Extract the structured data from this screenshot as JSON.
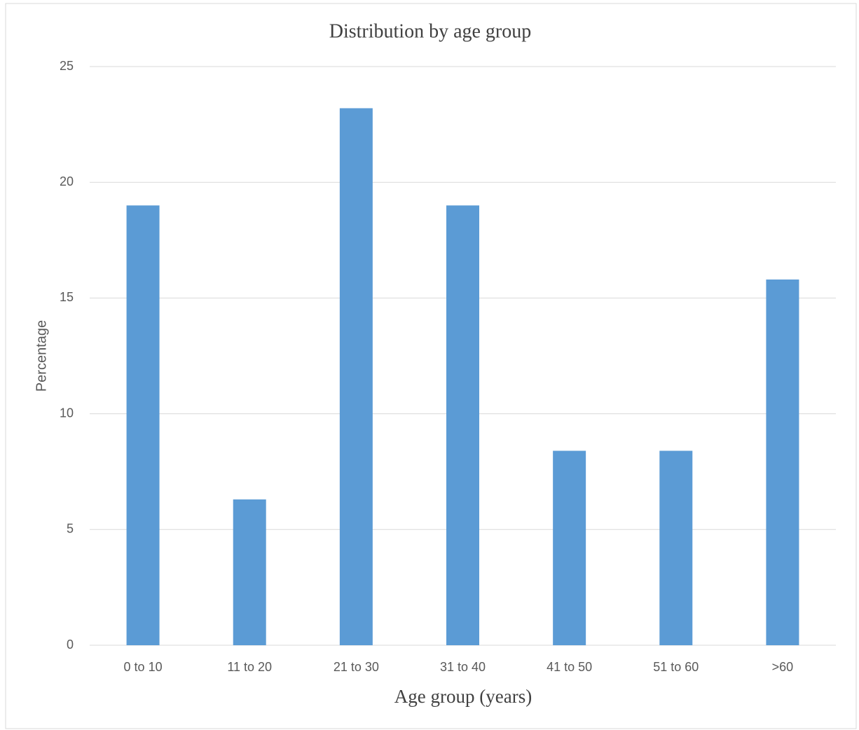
{
  "chart_data": {
    "type": "bar",
    "title": "Distribution by age group",
    "x_label": "Age group (years)",
    "y_label": "Percentage",
    "categories": [
      "0 to 10",
      "11 to 20",
      "21 to 30",
      "31 to 40",
      "41 to 50",
      "51 to 60",
      ">60"
    ],
    "values": [
      19.0,
      6.3,
      23.2,
      19.0,
      8.4,
      8.4,
      15.8
    ],
    "color": "#5b9bd5",
    "ylim": [
      0,
      25
    ],
    "yticks": [
      0,
      5,
      10,
      15,
      20,
      25
    ],
    "grid": true
  }
}
